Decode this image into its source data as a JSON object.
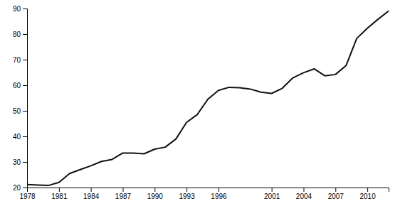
{
  "chart_data": {
    "type": "line",
    "x": [
      1978,
      1979,
      1980,
      1981,
      1982,
      1983,
      1984,
      1985,
      1986,
      1987,
      1988,
      1989,
      1990,
      1991,
      1992,
      1993,
      1994,
      1995,
      1996,
      1997,
      1998,
      1999,
      2000,
      2001,
      2002,
      2003,
      2004,
      2005,
      2006,
      2007,
      2008,
      2009,
      2010,
      2011,
      2012
    ],
    "values": [
      21.2,
      21.0,
      20.8,
      22.0,
      25.5,
      27.0,
      28.5,
      30.2,
      31.0,
      33.5,
      33.5,
      33.2,
      35.0,
      35.8,
      39.0,
      45.5,
      48.5,
      54.5,
      58.0,
      59.2,
      59.0,
      58.5,
      57.3,
      56.8,
      58.8,
      62.9,
      64.9,
      66.4,
      63.7,
      64.2,
      67.7,
      78.3,
      82.3,
      85.8,
      89.0
    ],
    "color": "#111111",
    "xlim": [
      1978,
      2012
    ],
    "ylim": [
      20,
      90
    ],
    "xticks": [
      1978,
      1981,
      1984,
      1987,
      1990,
      1993,
      1996,
      2001,
      2004,
      2007,
      2010
    ],
    "yticks": [
      20,
      30,
      40,
      50,
      60,
      70,
      80,
      90
    ],
    "grid": false
  }
}
